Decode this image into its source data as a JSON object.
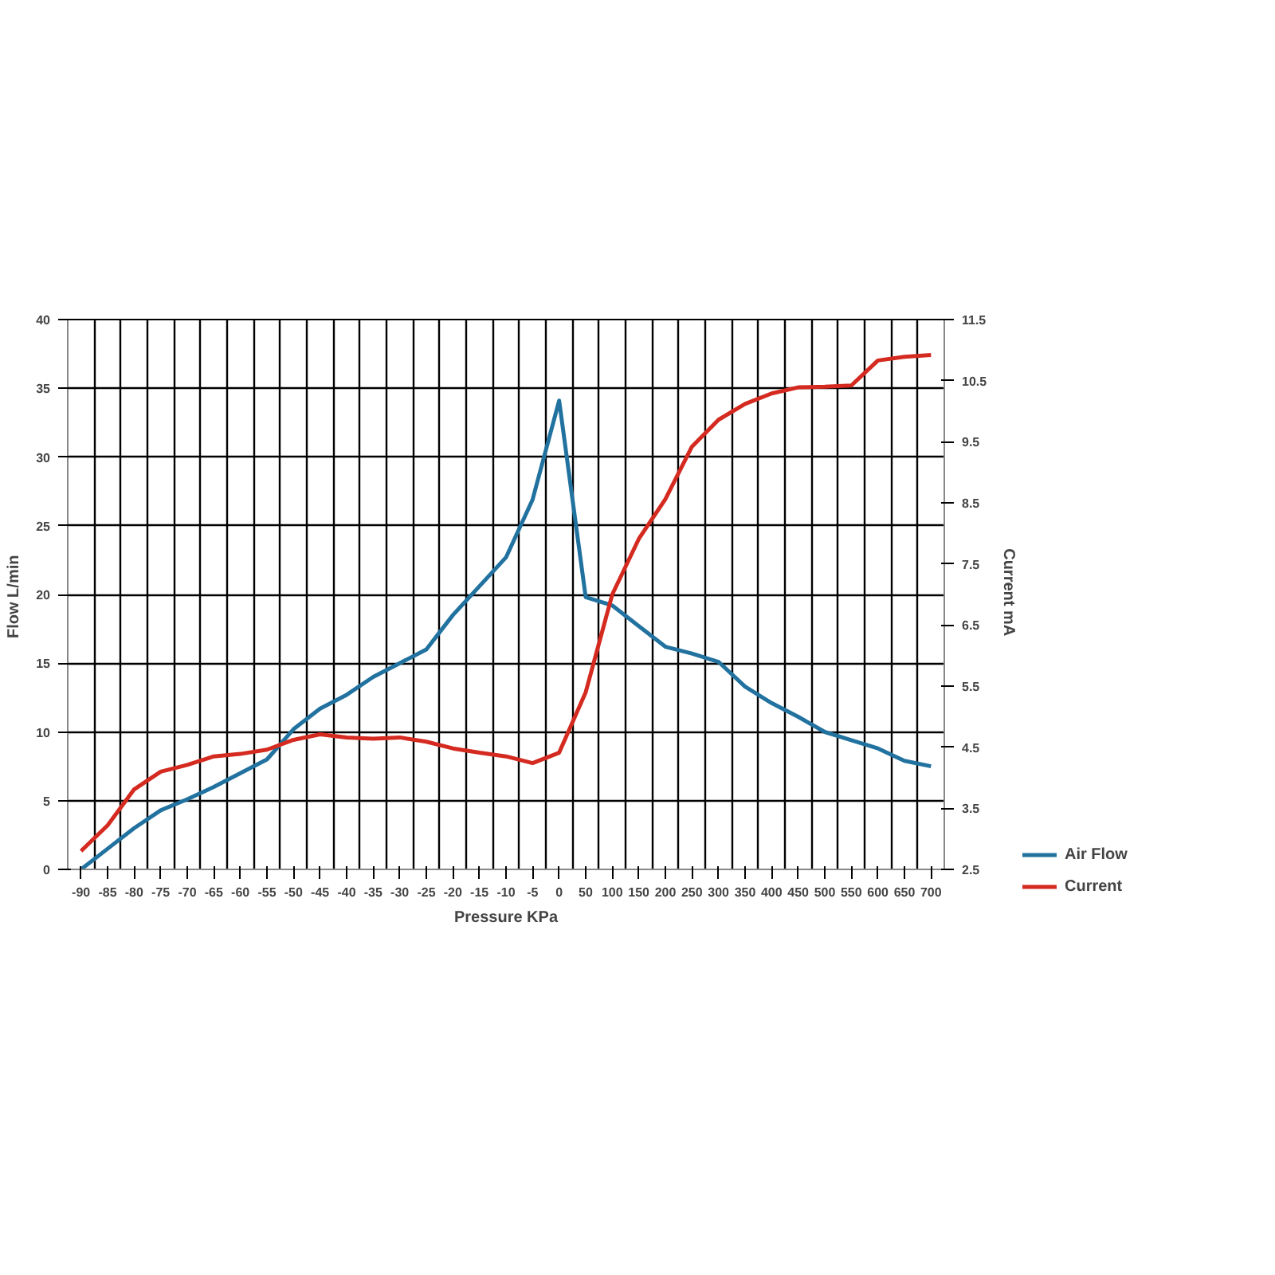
{
  "chart_data": {
    "type": "line",
    "xlabel": "Pressure KPa",
    "ylabel": "Flow  L/min",
    "y2label": "Current  mA",
    "categories": [
      "-90",
      "-85",
      "-80",
      "-75",
      "-70",
      "-65",
      "-60",
      "-55",
      "-50",
      "-45",
      "-40",
      "-35",
      "-30",
      "-25",
      "-20",
      "-15",
      "-10",
      "-5",
      "0",
      "50",
      "100",
      "150",
      "200",
      "250",
      "300",
      "350",
      "400",
      "450",
      "500",
      "550",
      "600",
      "650",
      "700"
    ],
    "ylim": [
      0,
      40
    ],
    "yticks": [
      0,
      5,
      10,
      15,
      20,
      25,
      30,
      35,
      40
    ],
    "y2lim": [
      2.5,
      11.5
    ],
    "y2ticks": [
      2.5,
      3.5,
      4.5,
      5.5,
      6.5,
      7.5,
      8.5,
      9.5,
      10.5,
      11.5
    ],
    "grid": true,
    "legend": "right",
    "line_style": "solid",
    "series": [
      {
        "name": "Air Flow",
        "color": "#2272a0",
        "values": [
          0,
          1.5,
          3.0,
          4.3,
          5.1,
          6.0,
          7.0,
          8.0,
          10.2,
          11.7,
          12.7,
          14.0,
          15.0,
          16.0,
          18.5,
          20.6,
          22.7,
          26.9,
          34.1,
          19.8,
          19.2,
          17.7,
          16.2,
          15.7,
          15.1,
          13.3,
          12.1,
          11.1,
          10.0,
          9.4,
          8.8,
          7.9,
          7.5
        ]
      },
      {
        "name": "Current",
        "color": "#d42a20",
        "axis": "y2",
        "values": [
          2.8,
          3.22,
          3.81,
          4.1,
          4.21,
          4.35,
          4.39,
          4.46,
          4.62,
          4.71,
          4.66,
          4.64,
          4.66,
          4.59,
          4.48,
          4.41,
          4.35,
          4.24,
          4.41,
          5.4,
          7.0,
          7.91,
          8.56,
          9.42,
          9.86,
          10.12,
          10.29,
          10.39,
          10.4,
          10.42,
          10.83,
          10.89,
          10.92
        ]
      }
    ]
  }
}
